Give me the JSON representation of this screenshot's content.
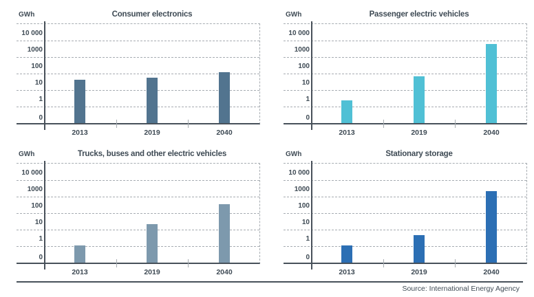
{
  "page": {
    "background": "#ffffff",
    "text_color": "#3e4a54",
    "axis_color": "#475059",
    "gridline_color": "#a6acb1"
  },
  "footer": {
    "source": "Source: International Energy Agency"
  },
  "chart_data": [
    {
      "type": "bar",
      "title": "Consumer electronics",
      "unit": "GWh",
      "yscale": "log",
      "grid": "horizontal-dashed",
      "legend": "none",
      "yticks": [
        "10 000",
        "1000",
        "100",
        "10",
        "1",
        "0"
      ],
      "categories": [
        "2013",
        "2019",
        "2040"
      ],
      "values": [
        35,
        45,
        100
      ],
      "color": "#52748f"
    },
    {
      "type": "bar",
      "title": "Passenger electric vehicles",
      "unit": "GWh",
      "yscale": "log",
      "grid": "horizontal-dashed",
      "legend": "none",
      "yticks": [
        "10 000",
        "1000",
        "100",
        "10",
        "1",
        "0"
      ],
      "categories": [
        "2013",
        "2019",
        "2040"
      ],
      "values": [
        2,
        55,
        5000
      ],
      "color": "#50c0d5"
    },
    {
      "type": "bar",
      "title": "Trucks, buses and other electric vehicles",
      "unit": "GWh",
      "yscale": "log",
      "grid": "horizontal-dashed",
      "legend": "none",
      "yticks": [
        "10 000",
        "1000",
        "100",
        "10",
        "1",
        "0"
      ],
      "categories": [
        "2013",
        "2019",
        "2040"
      ],
      "values": [
        0.9,
        18,
        300
      ],
      "color": "#7d99ad"
    },
    {
      "type": "bar",
      "title": "Stationary storage",
      "unit": "GWh",
      "yscale": "log",
      "grid": "horizontal-dashed",
      "legend": "none",
      "yticks": [
        "10 000",
        "1000",
        "100",
        "10",
        "1",
        "0"
      ],
      "categories": [
        "2013",
        "2019",
        "2040"
      ],
      "values": [
        0.9,
        4,
        1800
      ],
      "color": "#2c6fb4"
    }
  ]
}
